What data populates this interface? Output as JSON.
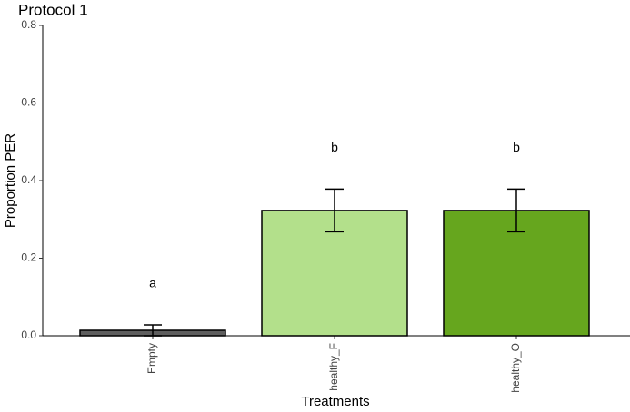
{
  "chart_data": {
    "type": "bar",
    "title": "Protocol 1",
    "x_label": "Treatments",
    "y_label": "Proportion PER",
    "categories": [
      "Empty",
      "healthy_F",
      "healthy_O"
    ],
    "values": [
      0.014,
      0.323,
      0.323
    ],
    "errors": [
      0.014,
      0.055,
      0.055
    ],
    "colors": [
      "#5e5e5e",
      "#b3e08b",
      "#66a61e"
    ],
    "annotations": [
      "a",
      "b",
      "b"
    ],
    "ylim": [
      0,
      0.8
    ],
    "yticks": [
      {
        "value": 0,
        "label": "0.0"
      },
      0.2,
      0.4,
      0.6,
      0.8
    ],
    "grid": false
  }
}
